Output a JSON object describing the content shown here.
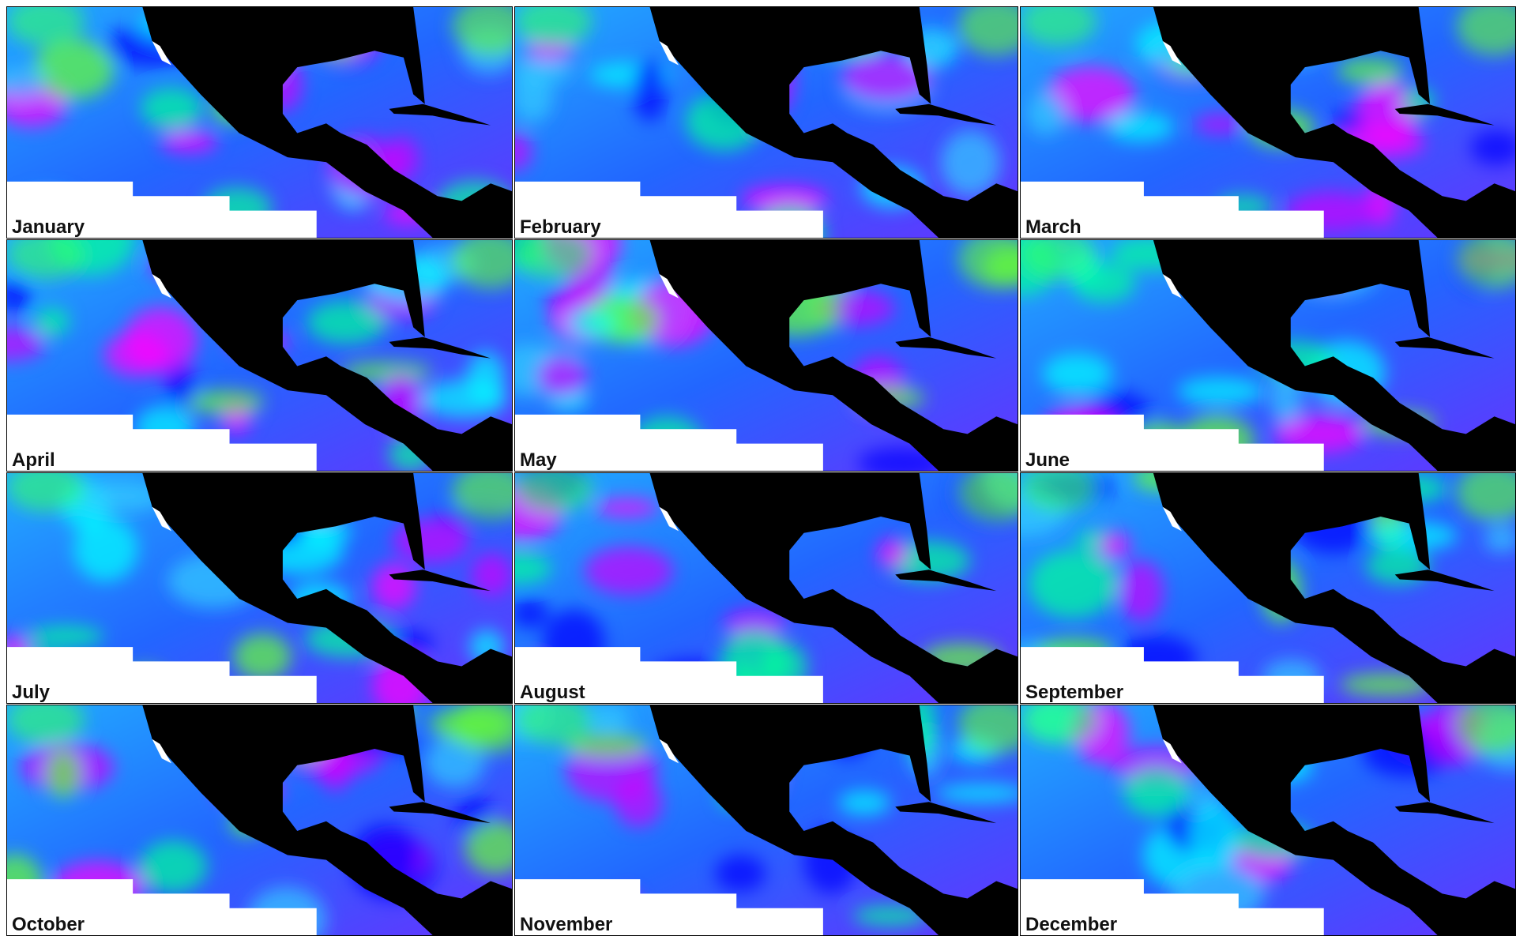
{
  "panels": [
    {
      "label": "January"
    },
    {
      "label": "February"
    },
    {
      "label": "March"
    },
    {
      "label": "April"
    },
    {
      "label": "May"
    },
    {
      "label": "June"
    },
    {
      "label": "July"
    },
    {
      "label": "August"
    },
    {
      "label": "September"
    },
    {
      "label": "October"
    },
    {
      "label": "November"
    },
    {
      "label": "December"
    }
  ]
}
